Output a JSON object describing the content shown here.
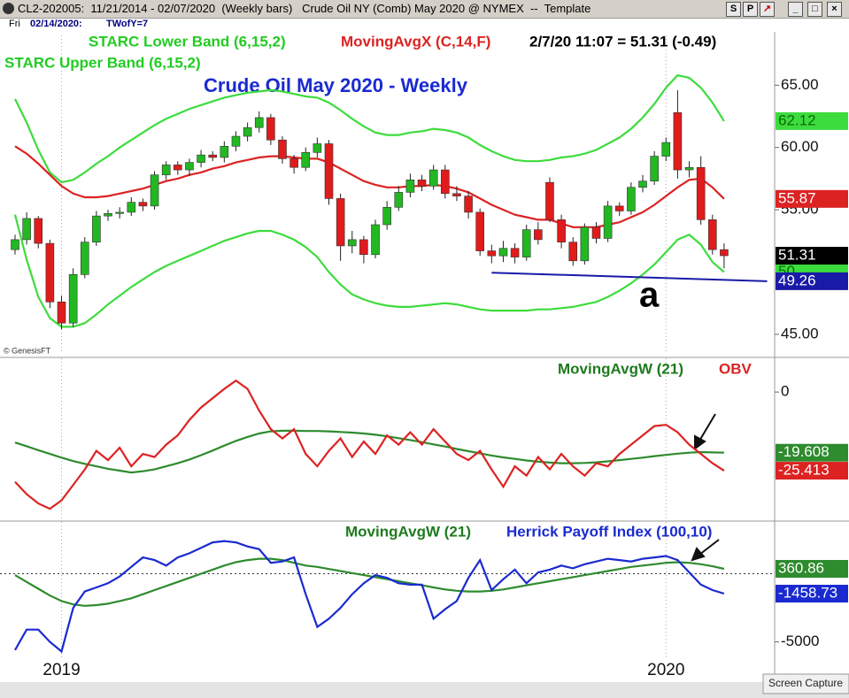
{
  "window": {
    "title": "CL2-202005:  11/21/2014 - 02/07/2020  (Weekly bars)   Crude Oil NY (Comb) May 2020 @ NYMEX  --  Template",
    "day": "Fri",
    "date": "02/14/2020:",
    "info": "TWofY=7",
    "buttons": [
      "S",
      "P"
    ],
    "status": "Screen Capture"
  },
  "chart_data": [
    {
      "type": "candlestick",
      "title": "Crude Oil May 2020 - Weekly",
      "info": "2/7/20 11:07 = 51.31 (-0.49)",
      "annotation": "a",
      "credit": "© GenesisFT",
      "up_color": "#22b822",
      "down_color": "#e01b1b",
      "close_label_color": "#000000",
      "open": [
        51.8,
        52.6,
        54.3,
        52.3,
        47.6,
        45.9,
        49.8,
        52.4,
        54.5,
        54.7,
        54.8,
        55.6,
        55.3,
        57.8,
        58.6,
        58.2,
        58.8,
        59.4,
        59.2,
        60.1,
        60.9,
        61.6,
        62.4,
        60.6,
        59.1,
        58.4,
        59.6,
        60.3,
        55.9,
        52.1,
        52.6,
        51.4,
        53.8,
        55.2,
        56.4,
        57.4,
        56.9,
        58.2,
        56.3,
        56.1,
        54.8,
        51.7,
        51.3,
        51.9,
        51.2,
        53.4,
        57.2,
        54.2,
        52.4,
        50.9,
        53.6,
        52.7,
        55.3,
        54.9,
        56.8,
        57.3,
        59.3,
        62.8,
        58.2,
        58.4,
        54.2,
        51.8
      ],
      "high": [
        53.0,
        54.8,
        54.5,
        52.6,
        48.1,
        50.3,
        52.8,
        54.9,
        55.0,
        55.2,
        56.0,
        55.9,
        58.1,
        58.9,
        58.9,
        59.1,
        59.8,
        59.7,
        60.5,
        61.3,
        62.0,
        62.9,
        62.7,
        60.9,
        59.4,
        60.0,
        60.8,
        60.6,
        56.3,
        53.3,
        52.9,
        54.2,
        55.7,
        56.9,
        57.9,
        57.8,
        58.6,
        58.6,
        56.9,
        56.5,
        55.1,
        52.2,
        52.5,
        52.3,
        53.8,
        54.0,
        57.6,
        54.6,
        52.8,
        53.9,
        54.0,
        55.7,
        55.6,
        57.2,
        57.8,
        59.7,
        60.8,
        64.6,
        58.9,
        59.3,
        54.6,
        52.3
      ],
      "low": [
        51.4,
        52.2,
        51.9,
        47.1,
        45.4,
        45.6,
        49.5,
        52.1,
        54.1,
        54.3,
        54.5,
        54.9,
        55.0,
        57.4,
        57.8,
        57.7,
        58.4,
        58.9,
        58.8,
        59.7,
        60.5,
        61.2,
        60.2,
        58.7,
        57.9,
        58.1,
        59.2,
        55.4,
        50.9,
        51.5,
        50.7,
        51.1,
        53.4,
        54.9,
        56.0,
        56.5,
        56.6,
        55.9,
        55.7,
        54.3,
        51.3,
        50.7,
        50.8,
        50.7,
        50.9,
        52.2,
        54.0,
        51.9,
        50.5,
        50.6,
        52.3,
        52.4,
        54.5,
        54.6,
        56.4,
        57.0,
        58.9,
        57.5,
        57.6,
        53.8,
        51.4,
        50.3
      ],
      "close": [
        52.6,
        54.3,
        52.3,
        47.6,
        45.9,
        49.8,
        52.4,
        54.5,
        54.7,
        54.8,
        55.6,
        55.3,
        57.8,
        58.6,
        58.2,
        58.8,
        59.4,
        59.2,
        60.1,
        60.9,
        61.6,
        62.4,
        60.6,
        59.1,
        58.4,
        59.6,
        60.3,
        55.9,
        52.1,
        52.6,
        51.4,
        53.8,
        55.2,
        56.4,
        57.4,
        56.9,
        58.2,
        56.3,
        56.1,
        54.8,
        51.7,
        51.3,
        51.9,
        51.2,
        53.4,
        52.6,
        54.2,
        52.4,
        50.9,
        53.6,
        52.7,
        55.3,
        54.9,
        56.8,
        57.3,
        59.3,
        60.4,
        58.2,
        58.4,
        54.2,
        51.8,
        51.31
      ],
      "series": [
        {
          "name": "STARC Upper Band (6,15,2)",
          "color": "#3ddc3d",
          "values": [
            63.9,
            62.0,
            59.8,
            58.0,
            57.2,
            57.4,
            58.0,
            58.7,
            59.3,
            60.0,
            60.6,
            61.2,
            61.8,
            62.3,
            62.7,
            63.1,
            63.4,
            63.7,
            64.0,
            64.2,
            64.4,
            64.5,
            64.6,
            64.5,
            64.3,
            64.1,
            64.0,
            63.6,
            63.0,
            62.3,
            61.7,
            61.2,
            61.0,
            61.0,
            61.2,
            61.3,
            61.5,
            61.4,
            61.2,
            60.8,
            60.2,
            59.7,
            59.3,
            59.0,
            58.9,
            58.9,
            59.0,
            59.2,
            59.3,
            59.5,
            59.8,
            60.3,
            60.8,
            61.5,
            62.4,
            63.5,
            64.8,
            65.8,
            65.6,
            64.8,
            63.6,
            62.12
          ]
        },
        {
          "name": "STARC Lower Band (6,15,2)",
          "color": "#3ddc3d",
          "values": [
            54.6,
            51.0,
            48.0,
            46.3,
            45.6,
            45.6,
            45.9,
            46.6,
            47.4,
            48.1,
            48.8,
            49.4,
            50.0,
            50.5,
            50.9,
            51.3,
            51.7,
            52.1,
            52.5,
            52.8,
            53.1,
            53.3,
            53.3,
            53.0,
            52.6,
            52.0,
            51.2,
            50.0,
            49.0,
            48.2,
            47.8,
            47.5,
            47.3,
            47.2,
            47.2,
            47.3,
            47.4,
            47.5,
            47.4,
            47.2,
            47.0,
            46.9,
            46.9,
            46.9,
            46.9,
            47.0,
            47.0,
            47.1,
            47.2,
            47.4,
            47.6,
            48.0,
            48.5,
            49.1,
            49.8,
            50.6,
            51.6,
            52.6,
            53.0,
            52.2,
            50.8,
            50.0
          ]
        },
        {
          "name": "MovingAvgX (C,14,F)",
          "color": "#dd2222",
          "values": [
            60.1,
            59.5,
            58.7,
            57.8,
            56.9,
            56.3,
            56.0,
            56.0,
            56.1,
            56.3,
            56.5,
            56.7,
            57.0,
            57.3,
            57.5,
            57.8,
            58.0,
            58.3,
            58.5,
            58.8,
            59.0,
            59.2,
            59.3,
            59.3,
            59.2,
            59.1,
            59.1,
            58.8,
            58.3,
            57.8,
            57.3,
            57.0,
            56.8,
            56.8,
            56.9,
            56.9,
            57.0,
            56.9,
            56.7,
            56.4,
            55.9,
            55.4,
            55.0,
            54.6,
            54.4,
            54.2,
            54.2,
            53.9,
            53.6,
            53.6,
            53.6,
            53.8,
            54.0,
            54.4,
            54.8,
            55.4,
            56.1,
            56.8,
            57.4,
            57.5,
            56.8,
            55.87
          ]
        }
      ],
      "trendline": {
        "x": [
          41,
          64.7
        ],
        "values": [
          49.95,
          49.26
        ],
        "color": "#1a1aa8"
      },
      "ylim": [
        43.5,
        69
      ],
      "yticks": [
        {
          "value": 45,
          "label": "45.00"
        },
        {
          "value": 55,
          "label": "55.00"
        },
        {
          "value": 60,
          "label": "60.00"
        },
        {
          "value": 65,
          "label": "65.00"
        }
      ]
    },
    {
      "type": "line",
      "series": [
        {
          "name": "MovingAvgW (21)",
          "color": "#2e8b2e",
          "values": [
            -16.3,
            -17.5,
            -18.8,
            -20,
            -21.2,
            -22.3,
            -23.2,
            -24,
            -24.8,
            -25.4,
            -26,
            -25.6,
            -25,
            -24,
            -23,
            -21.8,
            -20.4,
            -18.9,
            -17.3,
            -15.8,
            -14.5,
            -13.4,
            -12.7,
            -12.5,
            -12.5,
            -12.6,
            -12.6,
            -12.7,
            -12.9,
            -13.1,
            -13.4,
            -13.8,
            -14.3,
            -14.9,
            -15.5,
            -16.2,
            -16.9,
            -17.6,
            -18.4,
            -19.1,
            -19.8,
            -20.5,
            -21.1,
            -21.6,
            -22.1,
            -22.5,
            -22.8,
            -23,
            -23,
            -22.9,
            -22.7,
            -22.4,
            -22,
            -21.6,
            -21.2,
            -20.7,
            -20.3,
            -19.9,
            -19.6,
            -19.4,
            -19.5,
            -19.608
          ]
        },
        {
          "name": "OBV",
          "color": "#dd2222",
          "values": [
            -29,
            -33,
            -36,
            -37.7,
            -35,
            -30,
            -25,
            -19,
            -22,
            -18,
            -24,
            -20,
            -21,
            -17,
            -14,
            -9,
            -5,
            -2,
            1,
            3.7,
            1,
            -6,
            -12,
            -15,
            -12,
            -20,
            -24,
            -19,
            -15,
            -21,
            -16,
            -20,
            -14,
            -17,
            -13,
            -17,
            -12,
            -16,
            -20,
            -22,
            -19,
            -25,
            -30.6,
            -24,
            -27,
            -21,
            -25,
            -20,
            -24,
            -27,
            -23,
            -24,
            -20,
            -17,
            -14,
            -11,
            -10.6,
            -13,
            -17,
            -20,
            -23,
            -25.413
          ]
        }
      ],
      "ylim": [
        -41.4,
        10.9
      ],
      "yticks": [
        0
      ]
    },
    {
      "type": "line",
      "categories": [
        null,
        null,
        null,
        null,
        "2019",
        null,
        null,
        null,
        null,
        null,
        null,
        null,
        null,
        null,
        null,
        null,
        null,
        null,
        null,
        null,
        null,
        null,
        null,
        null,
        null,
        null,
        null,
        null,
        null,
        null,
        null,
        null,
        null,
        null,
        null,
        null,
        null,
        null,
        null,
        null,
        null,
        null,
        null,
        null,
        null,
        null,
        null,
        null,
        null,
        null,
        null,
        null,
        null,
        null,
        null,
        null,
        "2020",
        null,
        null,
        null,
        null,
        null
      ],
      "series": [
        {
          "name": "MovingAvgW (21)",
          "color": "#2e8b2e",
          "values": [
            -100,
            -600,
            -1100,
            -1600,
            -2000,
            -2250,
            -2350,
            -2300,
            -2200,
            -2000,
            -1800,
            -1500,
            -1200,
            -900,
            -600,
            -300,
            0,
            300,
            600,
            850,
            1000,
            1100,
            1100,
            1000,
            800,
            600,
            500,
            350,
            200,
            50,
            -100,
            -250,
            -400,
            -550,
            -700,
            -850,
            -1000,
            -1150,
            -1250,
            -1300,
            -1300,
            -1250,
            -1150,
            -1000,
            -850,
            -700,
            -550,
            -400,
            -250,
            -100,
            50,
            200,
            350,
            500,
            600,
            700,
            800,
            850,
            800,
            700,
            550,
            360.86
          ]
        },
        {
          "name": "Herrick Payoff Index (100,10)",
          "color": "#1a2ad0",
          "values": [
            -5600,
            -4100,
            -4100,
            -5000,
            -5700,
            -2500,
            -1300,
            -1000,
            -700,
            -200,
            500,
            1200,
            1000,
            600,
            1200,
            1500,
            1900,
            2300,
            2400,
            2300,
            2000,
            1800,
            800,
            900,
            1200,
            -1500,
            -3900,
            -3300,
            -2500,
            -1500,
            -700,
            -100,
            -300,
            -700,
            -800,
            -800,
            -3300,
            -2600,
            -2000,
            -300,
            1000,
            -1200,
            -400,
            300,
            -700,
            100,
            300,
            600,
            400,
            700,
            900,
            1100,
            1000,
            900,
            1100,
            1200,
            1300,
            1000,
            100,
            -800,
            -1200,
            -1458.73
          ]
        }
      ],
      "reference_line": 0,
      "ylim": [
        -6260,
        3800
      ],
      "yticks": [
        -5000
      ]
    }
  ]
}
